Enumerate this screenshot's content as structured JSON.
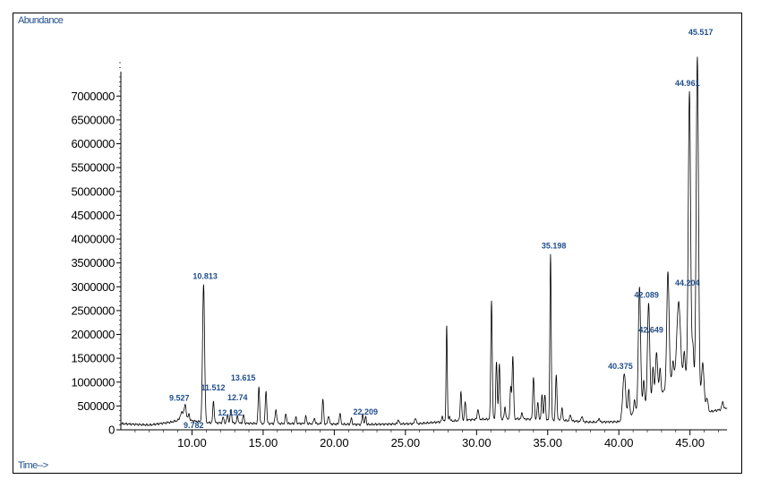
{
  "chart_data": {
    "type": "line",
    "ylabel": "Abundance",
    "xlabel": "Time-->",
    "xlim": [
      5.0,
      47.6
    ],
    "ylim": [
      0,
      7700000
    ],
    "x_ticks": [
      10,
      15,
      20,
      25,
      30,
      35,
      40,
      45
    ],
    "x_tick_labels": [
      "10.00",
      "15.00",
      "20.00",
      "25.00",
      "30.00",
      "35.00",
      "40.00",
      "45.00"
    ],
    "y_ticks": [
      0,
      500000,
      1000000,
      1500000,
      2000000,
      2500000,
      3000000,
      3500000,
      4000000,
      4500000,
      5000000,
      5500000,
      6000000,
      6500000,
      7000000
    ],
    "y_tick_labels": [
      "0",
      "500000",
      "1000000",
      "1500000",
      "2000000",
      "2500000",
      "3000000",
      "3500000",
      "4000000",
      "4500000",
      "5000000",
      "5500000",
      "6000000",
      "6500000",
      "7000000"
    ],
    "line_color": "#000000",
    "label_color": "#1f4e8c",
    "baseline": [
      [
        5.0,
        130000
      ],
      [
        7.0,
        100000
      ],
      [
        8.5,
        160000
      ],
      [
        9.5,
        230000
      ],
      [
        10.0,
        190000
      ],
      [
        11.0,
        150000
      ],
      [
        13.0,
        140000
      ],
      [
        15.0,
        130000
      ],
      [
        18.0,
        130000
      ],
      [
        22.0,
        110000
      ],
      [
        26.0,
        130000
      ],
      [
        28.0,
        180000
      ],
      [
        30.0,
        220000
      ],
      [
        33.0,
        230000
      ],
      [
        36.0,
        200000
      ],
      [
        38.0,
        160000
      ],
      [
        40.0,
        170000
      ],
      [
        42.0,
        480000
      ],
      [
        43.0,
        750000
      ],
      [
        44.0,
        1150000
      ],
      [
        45.0,
        1100000
      ],
      [
        45.8,
        650000
      ],
      [
        46.4,
        380000
      ],
      [
        47.6,
        450000
      ]
    ],
    "peaks": [
      {
        "t": 9.3,
        "h": 150000,
        "w": 0.12
      },
      {
        "t": 9.527,
        "h": 260000,
        "w": 0.07
      },
      {
        "t": 9.782,
        "h": 120000,
        "w": 0.05
      },
      {
        "t": 10.813,
        "h": 2900000,
        "w": 0.07
      },
      {
        "t": 11.512,
        "h": 450000,
        "w": 0.05
      },
      {
        "t": 12.192,
        "h": 120000,
        "w": 0.05
      },
      {
        "t": 12.5,
        "h": 180000,
        "w": 0.05
      },
      {
        "t": 12.74,
        "h": 300000,
        "w": 0.05
      },
      {
        "t": 13.2,
        "h": 150000,
        "w": 0.05
      },
      {
        "t": 13.615,
        "h": 180000,
        "w": 0.05
      },
      {
        "t": 14.7,
        "h": 780000,
        "w": 0.05
      },
      {
        "t": 15.2,
        "h": 700000,
        "w": 0.05
      },
      {
        "t": 15.9,
        "h": 280000,
        "w": 0.06
      },
      {
        "t": 16.6,
        "h": 200000,
        "w": 0.05
      },
      {
        "t": 17.3,
        "h": 130000,
        "w": 0.05
      },
      {
        "t": 18.0,
        "h": 150000,
        "w": 0.05
      },
      {
        "t": 18.6,
        "h": 120000,
        "w": 0.05
      },
      {
        "t": 19.2,
        "h": 520000,
        "w": 0.05
      },
      {
        "t": 19.6,
        "h": 180000,
        "w": 0.05
      },
      {
        "t": 20.4,
        "h": 230000,
        "w": 0.05
      },
      {
        "t": 21.2,
        "h": 120000,
        "w": 0.05
      },
      {
        "t": 22.0,
        "h": 220000,
        "w": 0.05
      },
      {
        "t": 22.209,
        "h": 180000,
        "w": 0.04
      },
      {
        "t": 24.5,
        "h": 90000,
        "w": 0.05
      },
      {
        "t": 25.7,
        "h": 130000,
        "w": 0.05
      },
      {
        "t": 27.6,
        "h": 110000,
        "w": 0.05
      },
      {
        "t": 27.9,
        "h": 2050000,
        "w": 0.04
      },
      {
        "t": 28.1,
        "h": 100000,
        "w": 0.05
      },
      {
        "t": 28.9,
        "h": 600000,
        "w": 0.05
      },
      {
        "t": 29.2,
        "h": 380000,
        "w": 0.05
      },
      {
        "t": 30.1,
        "h": 220000,
        "w": 0.05
      },
      {
        "t": 31.05,
        "h": 2500000,
        "w": 0.05
      },
      {
        "t": 31.4,
        "h": 1200000,
        "w": 0.05
      },
      {
        "t": 31.6,
        "h": 1150000,
        "w": 0.05
      },
      {
        "t": 32.0,
        "h": 250000,
        "w": 0.05
      },
      {
        "t": 32.4,
        "h": 650000,
        "w": 0.05
      },
      {
        "t": 32.55,
        "h": 1320000,
        "w": 0.05
      },
      {
        "t": 33.2,
        "h": 130000,
        "w": 0.05
      },
      {
        "t": 34.0,
        "h": 900000,
        "w": 0.05
      },
      {
        "t": 34.3,
        "h": 350000,
        "w": 0.05
      },
      {
        "t": 34.6,
        "h": 500000,
        "w": 0.05
      },
      {
        "t": 34.8,
        "h": 520000,
        "w": 0.05
      },
      {
        "t": 35.198,
        "h": 3500000,
        "w": 0.045
      },
      {
        "t": 35.6,
        "h": 950000,
        "w": 0.05
      },
      {
        "t": 36.0,
        "h": 250000,
        "w": 0.05
      },
      {
        "t": 36.6,
        "h": 130000,
        "w": 0.05
      },
      {
        "t": 37.4,
        "h": 120000,
        "w": 0.05
      },
      {
        "t": 38.6,
        "h": 80000,
        "w": 0.05
      },
      {
        "t": 40.375,
        "h": 950000,
        "w": 0.1
      },
      {
        "t": 40.7,
        "h": 550000,
        "w": 0.06
      },
      {
        "t": 41.1,
        "h": 280000,
        "w": 0.06
      },
      {
        "t": 41.45,
        "h": 2600000,
        "w": 0.08
      },
      {
        "t": 41.75,
        "h": 600000,
        "w": 0.06
      },
      {
        "t": 42.089,
        "h": 2150000,
        "w": 0.08
      },
      {
        "t": 42.4,
        "h": 700000,
        "w": 0.06
      },
      {
        "t": 42.649,
        "h": 950000,
        "w": 0.08
      },
      {
        "t": 42.9,
        "h": 550000,
        "w": 0.06
      },
      {
        "t": 43.45,
        "h": 2400000,
        "w": 0.08
      },
      {
        "t": 43.8,
        "h": 350000,
        "w": 0.06
      },
      {
        "t": 44.204,
        "h": 1550000,
        "w": 0.12
      },
      {
        "t": 44.6,
        "h": 500000,
        "w": 0.06
      },
      {
        "t": 44.961,
        "h": 6000000,
        "w": 0.08
      },
      {
        "t": 45.2,
        "h": 800000,
        "w": 0.06
      },
      {
        "t": 45.517,
        "h": 7000000,
        "w": 0.08
      },
      {
        "t": 45.9,
        "h": 800000,
        "w": 0.08
      },
      {
        "t": 46.2,
        "h": 200000,
        "w": 0.06
      },
      {
        "t": 47.3,
        "h": 150000,
        "w": 0.06
      }
    ],
    "annotations": [
      {
        "text": "9.527",
        "t": 9.527,
        "dx": -18,
        "dy": -4
      },
      {
        "text": "9.782",
        "t": 9.782,
        "dx": -6,
        "dy": 16
      },
      {
        "text": "10.813",
        "t": 10.813,
        "dx": -12,
        "dy": -6
      },
      {
        "text": "11.512",
        "t": 11.512,
        "dx": -14,
        "dy": -12
      },
      {
        "text": "12.192",
        "t": 12.192,
        "dx": -6,
        "dy": -2
      },
      {
        "text": "12.74",
        "t": 12.74,
        "dx": -4,
        "dy": -10
      },
      {
        "text": "13.615",
        "t": 13.615,
        "dx": -14,
        "dy": -38
      },
      {
        "text": "22.209",
        "t": 22.209,
        "dx": -14,
        "dy": -2
      },
      {
        "text": "35.198",
        "t": 35.198,
        "dx": -10,
        "dy": -6
      },
      {
        "text": "40.375",
        "t": 40.375,
        "dx": -18,
        "dy": -6
      },
      {
        "text": "42.089",
        "t": 42.089,
        "dx": -16,
        "dy": -6
      },
      {
        "text": "42.649",
        "t": 42.649,
        "dx": -20,
        "dy": -22
      },
      {
        "text": "44.204",
        "t": 44.204,
        "dx": -4,
        "dy": -18
      },
      {
        "text": "44.961",
        "t": 44.961,
        "dx": -16,
        "dy": -6
      },
      {
        "text": "45.517",
        "t": 45.517,
        "dx": -10,
        "dy": -24
      }
    ]
  }
}
